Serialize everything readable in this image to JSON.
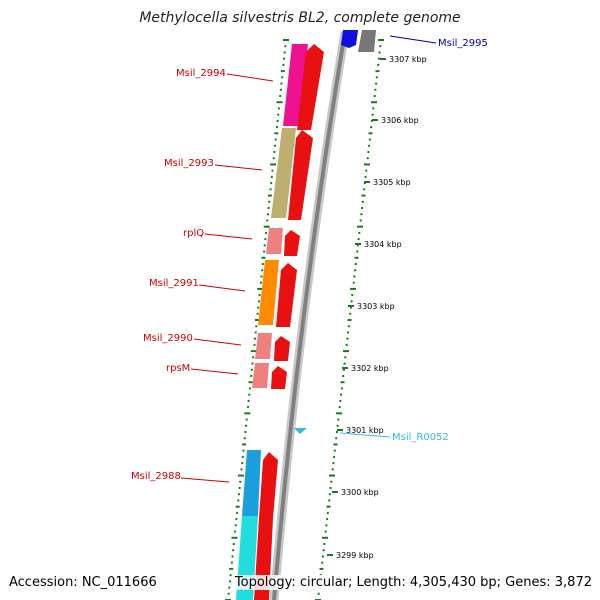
{
  "title": "Methylocella silvestris BL2, complete genome",
  "footer": {
    "accession": "Accession: NC_011666",
    "summary": "Topology: circular; Length: 4,305,430 bp; Genes: 3,872"
  },
  "colors": {
    "backbone": "#8c8c8c",
    "ticks": "#1a7a1a",
    "label_red": "#cc0000",
    "label_blue": "#0000aa",
    "label_cyan": "#33bbdd",
    "cds_red": "#e81010"
  },
  "kbp_ticks": [
    "3307 kbp",
    "3306 kbp",
    "3305 kbp",
    "3304 kbp",
    "3303 kbp",
    "3302 kbp",
    "3301 kbp",
    "3300 kbp",
    "3299 kbp"
  ],
  "genes": [
    {
      "name": "Msil_2995",
      "color_key": "label_blue"
    },
    {
      "name": "Msil_2994",
      "color_key": "label_red"
    },
    {
      "name": "Msil_2993",
      "color_key": "label_red"
    },
    {
      "name": "rplQ",
      "color_key": "label_red"
    },
    {
      "name": "Msil_2991",
      "color_key": "label_red"
    },
    {
      "name": "Msil_2990",
      "color_key": "label_red"
    },
    {
      "name": "rpsM",
      "color_key": "label_red"
    },
    {
      "name": "Msil_R0052",
      "color_key": "label_cyan"
    },
    {
      "name": "Msil_2988",
      "color_key": "label_red"
    }
  ]
}
